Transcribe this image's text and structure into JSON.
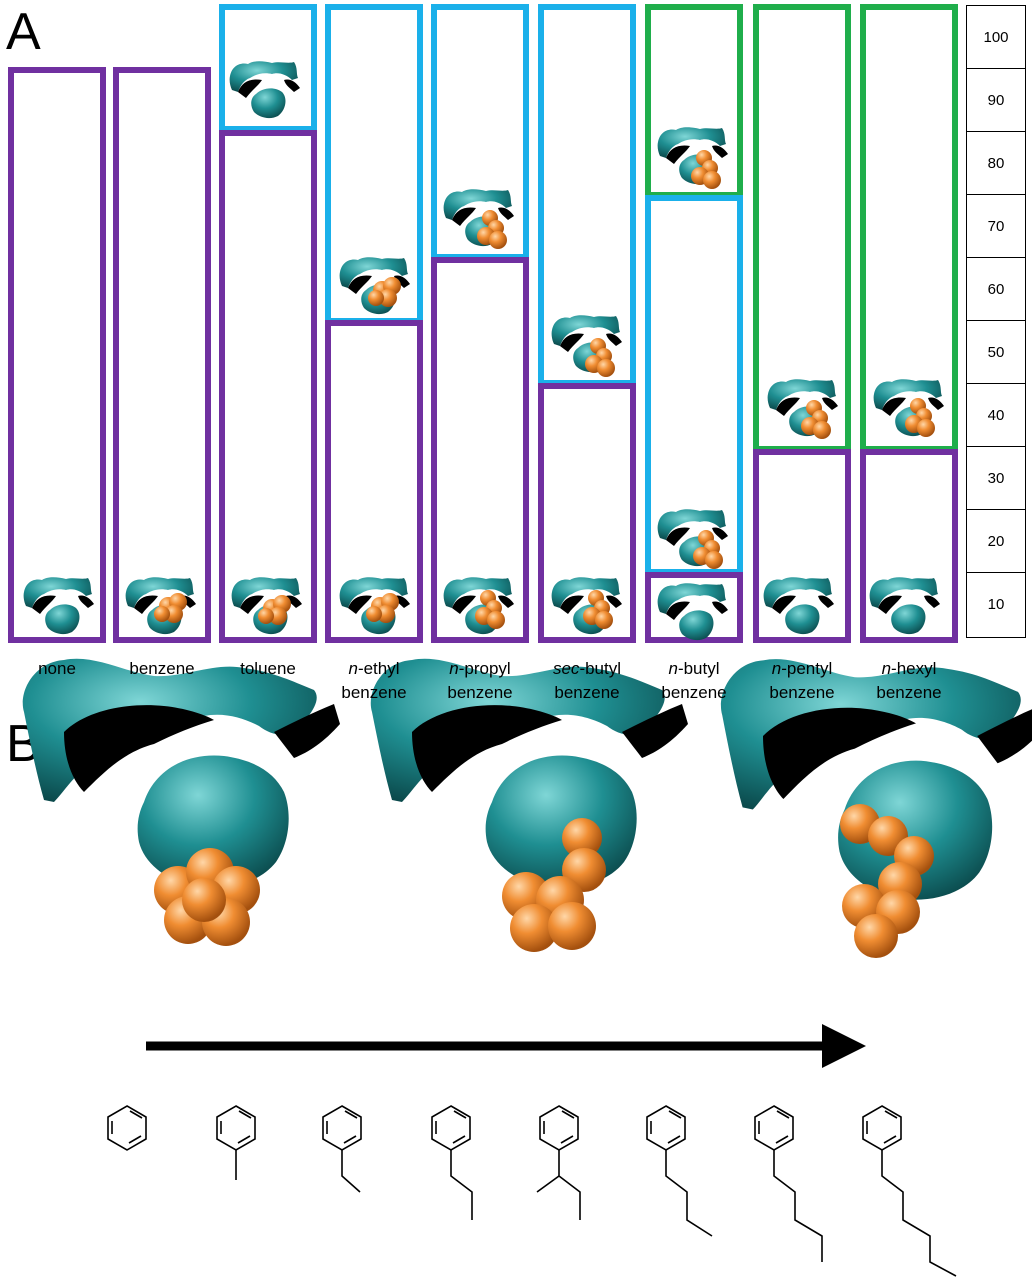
{
  "panel_a": {
    "letter": "A",
    "columns": [
      {
        "prefix": "",
        "rest": "none",
        "line2": ""
      },
      {
        "prefix": "",
        "rest": "benzene",
        "line2": ""
      },
      {
        "prefix": "",
        "rest": "toluene",
        "line2": ""
      },
      {
        "prefix": "n",
        "rest": "-ethyl",
        "line2": "benzene"
      },
      {
        "prefix": "n",
        "rest": "-propyl",
        "line2": "benzene"
      },
      {
        "prefix": "sec",
        "rest": "-butyl",
        "line2": "benzene"
      },
      {
        "prefix": "n",
        "rest": "-butyl",
        "line2": "benzene"
      },
      {
        "prefix": "n",
        "rest": "-pentyl",
        "line2": "benzene"
      },
      {
        "prefix": "n",
        "rest": "-hexyl",
        "line2": "benzene"
      }
    ],
    "scale": [
      "100",
      "90",
      "80",
      "70",
      "60",
      "50",
      "40",
      "30",
      "20",
      "10"
    ],
    "colors": {
      "purple": "#7030a0",
      "blue": "#1ab0ea",
      "green": "#1fae4b",
      "teal": "#1f8a8c",
      "orange": "#e8822a"
    }
  },
  "panel_b": {
    "letter": "B",
    "arrow": "arrow-right-icon",
    "structures": [
      "benzene",
      "toluene",
      "n-ethylbenzene",
      "n-propylbenzene",
      "sec-butylbenzene",
      "n-butylbenzene",
      "n-pentylbenzene",
      "n-hexylbenzene"
    ]
  }
}
